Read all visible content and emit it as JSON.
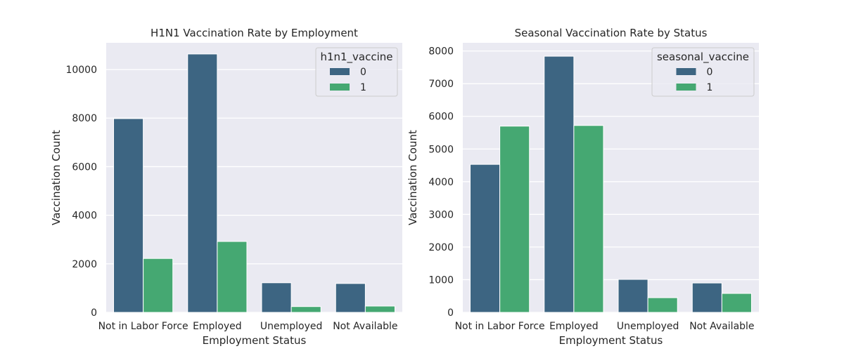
{
  "chart_data": [
    {
      "type": "bar",
      "title": "H1N1 Vaccination Rate by Employment",
      "xlabel": "Employment Status",
      "ylabel": "Vaccination Count",
      "categories": [
        "Not in Labor Force",
        "Employed",
        "Unemployed",
        "Not Available"
      ],
      "ylim": [
        0,
        11100
      ],
      "yticks": [
        0,
        2000,
        4000,
        6000,
        8000,
        10000
      ],
      "legend": {
        "title": "h1n1_vaccine",
        "position": "top-right"
      },
      "grid": true,
      "series": [
        {
          "name": "0",
          "color": "#3d6582",
          "values": [
            7980,
            10640,
            1220,
            1190
          ]
        },
        {
          "name": "1",
          "color": "#45a872",
          "values": [
            2220,
            2920,
            240,
            260
          ]
        }
      ]
    },
    {
      "type": "bar",
      "title": "Seasonal Vaccination Rate by Status",
      "xlabel": "Employment Status",
      "ylabel": "Vaccination Count",
      "categories": [
        "Not in Labor Force",
        "Employed",
        "Unemployed",
        "Not Available"
      ],
      "ylim": [
        0,
        8250
      ],
      "yticks": [
        0,
        1000,
        2000,
        3000,
        4000,
        5000,
        6000,
        7000,
        8000
      ],
      "legend": {
        "title": "seasonal_vaccine",
        "position": "top-right"
      },
      "grid": true,
      "series": [
        {
          "name": "0",
          "color": "#3d6582",
          "values": [
            4530,
            7840,
            1010,
            900
          ]
        },
        {
          "name": "1",
          "color": "#45a872",
          "values": [
            5700,
            5720,
            450,
            580
          ]
        }
      ]
    }
  ]
}
